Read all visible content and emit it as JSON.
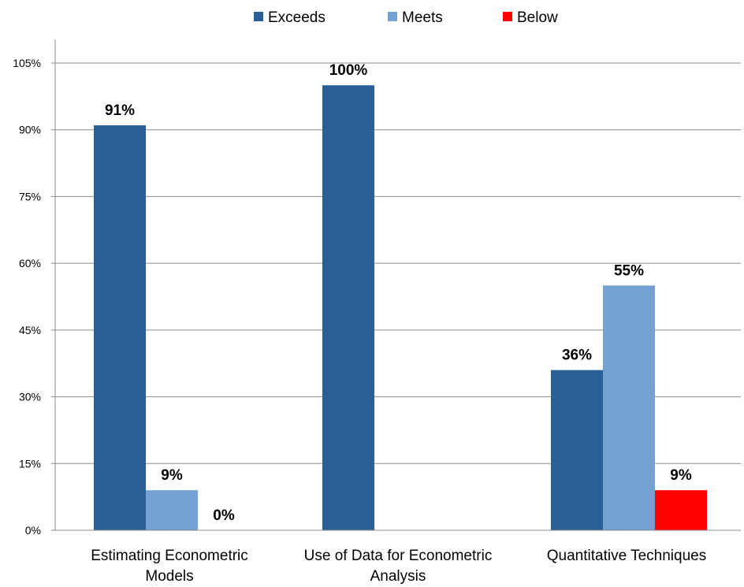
{
  "chart_data": {
    "type": "bar",
    "title": "",
    "xlabel": "",
    "ylabel": "",
    "categories": [
      [
        "Estimating Econometric",
        "Models"
      ],
      [
        "Use of Data for Econometric",
        "Analysis"
      ],
      [
        "Quantitative Techniques"
      ]
    ],
    "series": [
      {
        "name": "Exceeds",
        "color": "#2b5f98",
        "values": [
          91,
          100,
          36
        ],
        "labels": [
          "91%",
          "100%",
          "36%"
        ]
      },
      {
        "name": "Meets",
        "color": "#74a1d1",
        "values": [
          9,
          null,
          55
        ],
        "labels": [
          "9%",
          "",
          "55%"
        ]
      },
      {
        "name": "Below",
        "color": "#ff0000",
        "values": [
          0,
          null,
          9
        ],
        "labels": [
          "0%",
          "",
          "9%"
        ]
      }
    ],
    "ylim": [
      0,
      105
    ],
    "yticks": [
      0,
      15,
      30,
      45,
      60,
      75,
      90,
      105
    ],
    "ytick_labels": [
      "0%",
      "15%",
      "30%",
      "45%",
      "60%",
      "75%",
      "90%",
      "105%"
    ],
    "grid": true,
    "legend_position": "top-center"
  }
}
